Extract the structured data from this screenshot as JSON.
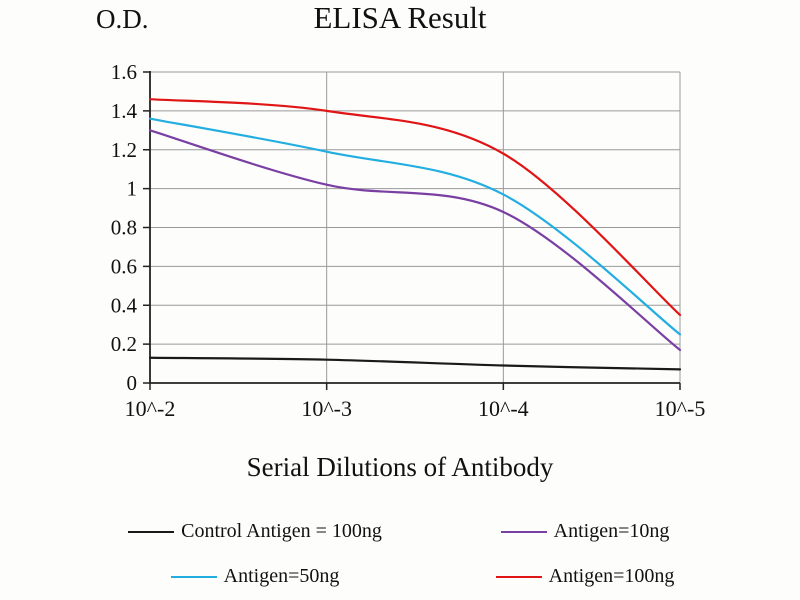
{
  "chart_data": {
    "type": "line",
    "title": "ELISA Result",
    "ylabel": "O.D.",
    "xlabel": "Serial Dilutions of Antibody",
    "categories": [
      "10^-2",
      "10^-3",
      "10^-4",
      "10^-5"
    ],
    "ylim": [
      0,
      1.6
    ],
    "yticks": [
      0,
      0.2,
      0.4,
      0.6,
      0.8,
      1,
      1.2,
      1.4,
      1.6
    ],
    "grid": true,
    "legend_position": "bottom",
    "series": [
      {
        "name": "Control Antigen = 100ng",
        "color": "#1a1a1a",
        "values": [
          0.13,
          0.12,
          0.09,
          0.07
        ]
      },
      {
        "name": "Antigen=10ng",
        "color": "#7a3fa3",
        "values": [
          1.3,
          1.02,
          0.88,
          0.17
        ]
      },
      {
        "name": "Antigen=50ng",
        "color": "#22aee0",
        "values": [
          1.36,
          1.19,
          0.97,
          0.25
        ]
      },
      {
        "name": "Antigen=100ng",
        "color": "#e01515",
        "values": [
          1.46,
          1.4,
          1.18,
          0.35
        ]
      }
    ],
    "colors": {
      "grid": "#9a9a9a",
      "axis": "#222222",
      "text": "#111111"
    }
  }
}
